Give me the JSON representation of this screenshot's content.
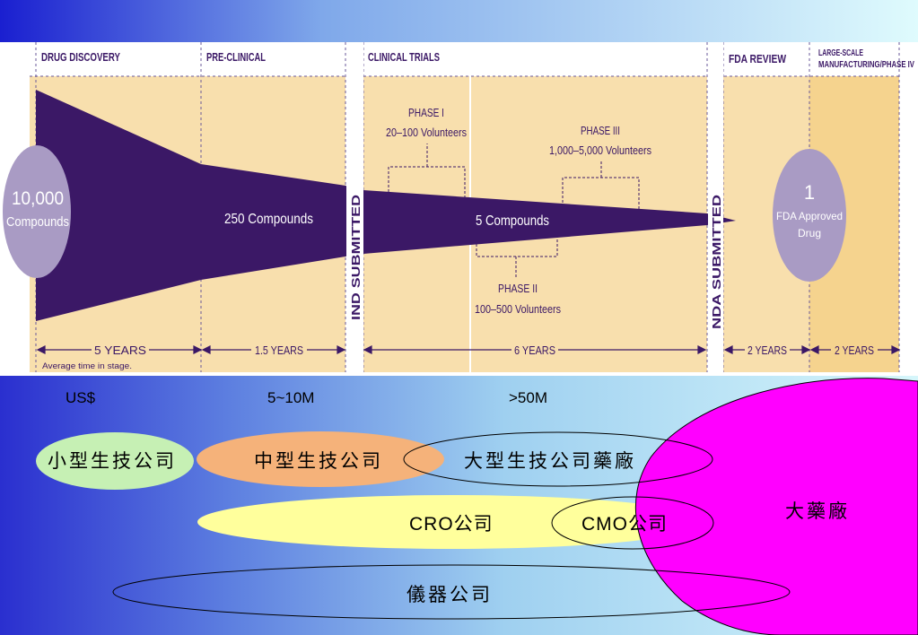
{
  "pipeline": {
    "stage_headers": {
      "drug_discovery": "DRUG DISCOVERY",
      "pre_clinical": "PRE-CLINICAL",
      "clinical_trials": "CLINICAL TRIALS",
      "fda_review": "FDA REVIEW",
      "manufacturing_line1": "LARGE-SCALE",
      "manufacturing_line2": "MANUFACTURING/PHASE IV"
    },
    "start_circle": {
      "line1": "10,000",
      "line2": "Compounds"
    },
    "end_circle": {
      "line1": "1",
      "line2": "FDA Approved",
      "line3": "Drug"
    },
    "funnel_labels": {
      "pre_clinical": "250 Compounds",
      "clinical": "5 Compounds"
    },
    "phases": {
      "phase1": {
        "name": "PHASE I",
        "volunteers": "20–100 Volunteers"
      },
      "phase2": {
        "name": "PHASE II",
        "volunteers": "100–500 Volunteers"
      },
      "phase3": {
        "name": "PHASE III",
        "volunteers": "1,000–5,000 Volunteers"
      }
    },
    "submissions": {
      "ind": "IND SUBMITTED",
      "nda": "NDA SUBMITTED"
    },
    "durations": {
      "drug_discovery": "5 YEARS",
      "pre_clinical": "1.5 YEARS",
      "clinical_trials": "6 YEARS",
      "fda_review": "2 YEARS",
      "manufacturing": "2 YEARS"
    },
    "footnote": "Average time in stage."
  },
  "funding": {
    "currency": "US$",
    "tier_mid": "5~10M",
    "tier_high": ">50M"
  },
  "companies": {
    "small_biotech": "小型生技公司",
    "mid_biotech": "中型生技公司",
    "large_biotech_pharma": "大型生技公司藥廠",
    "big_pharma": "大藥廠",
    "cro": "CRO公司",
    "cmo": "CMO公司",
    "instrument": "儀器公司"
  },
  "colors": {
    "funnel": "#3b1866",
    "stage_bg": "#f8dfad",
    "circle": "#a99bc4",
    "small_biotech": "#c6f0b4",
    "mid_biotech": "#f5b27a",
    "cro_cmo": "#ffff9c",
    "big_pharma": "#ff00ff",
    "accent_text": "#3b1866"
  }
}
